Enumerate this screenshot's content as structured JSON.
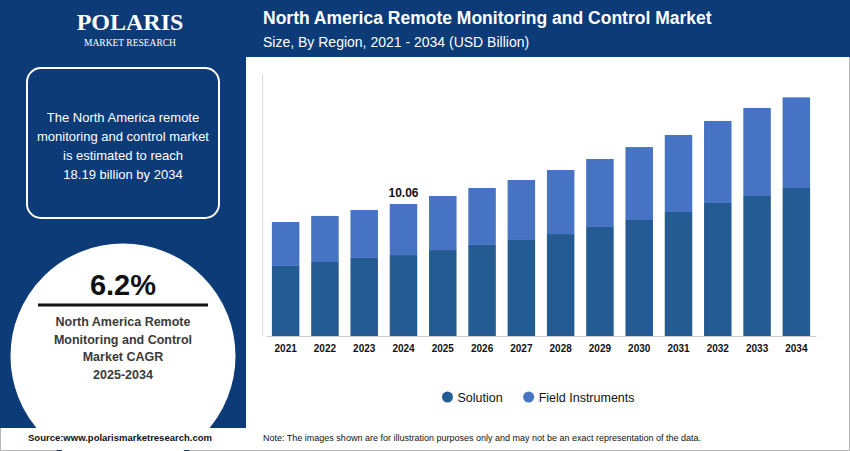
{
  "chart_data": {
    "type": "bar",
    "title": "North America Remote Monitoring and Control Market",
    "subtitle": "Size, By Region, 2021 - 2034 (USD Billion)",
    "categories": [
      "2021",
      "2022",
      "2023",
      "2024",
      "2025",
      "2026",
      "2027",
      "2028",
      "2029",
      "2030",
      "2031",
      "2032",
      "2033",
      "2034"
    ],
    "series": [
      {
        "name": "Solution",
        "color": "#245b93",
        "values": [
          5.34,
          5.64,
          5.95,
          6.17,
          6.55,
          6.94,
          7.32,
          7.77,
          8.31,
          8.84,
          9.45,
          10.14,
          10.67,
          11.28
        ]
      },
      {
        "name": "Field Instruments",
        "color": "#4673c4",
        "values": [
          3.35,
          3.51,
          3.65,
          3.89,
          4.12,
          4.34,
          4.57,
          4.88,
          5.18,
          5.56,
          5.87,
          6.25,
          6.71,
          6.91
        ]
      }
    ],
    "stacked": true,
    "ylim": [
      0,
      20
    ],
    "yticks": [],
    "tick_labels": "x",
    "grid": false,
    "legend": "bottom",
    "annotations": [
      {
        "text": "10.06",
        "x": "2024",
        "y": 10.06
      },
      {
        "lines": [
          "The North America remote",
          "monitoring and control market",
          "is estimated to reach",
          "18.19 billion by 2034"
        ]
      },
      {
        "text": "6.2%"
      },
      {
        "lines": [
          "North America Remote",
          "Monitoring and Control",
          "Market CAGR",
          "2025-2034"
        ]
      },
      {
        "text": "POLARIS"
      },
      {
        "text": "MARKET RESEARCH"
      },
      {
        "text": "Source:www.polarismarketresearch.com"
      },
      {
        "text": "Note: The images shown are for illustration purposes only and may not be an exact representation of the data."
      }
    ]
  }
}
